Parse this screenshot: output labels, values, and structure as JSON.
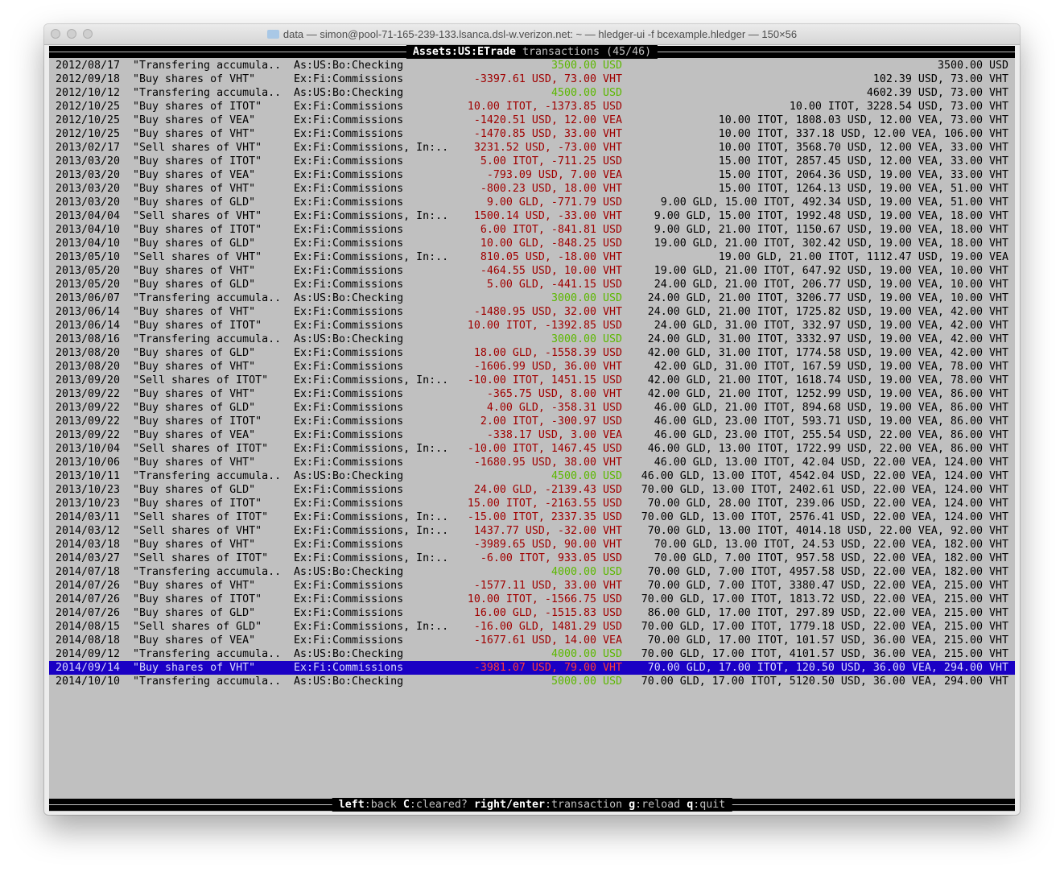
{
  "window": {
    "title": "data — simon@pool-71-165-239-133.lsanca.dsl-w.verizon.net: ~ — hledger-ui -f bcexample.hledger — 150×56",
    "folder_icon": "folder-icon"
  },
  "header": {
    "account": "Assets:US:ETrade",
    "label": " transactions (45/46)"
  },
  "colors": {
    "background": "#c0c0c0",
    "negative": "#a00000",
    "positive": "#5cb800",
    "selection": "#1a00c4"
  },
  "selected_index": 44,
  "rows": [
    {
      "date": "2012/08/17",
      "desc": "\"Transfering accumula..",
      "account": "As:US:Bo:Checking",
      "change": "3500.00 USD",
      "color": "green",
      "balance": "3500.00 USD"
    },
    {
      "date": "2012/09/18",
      "desc": "\"Buy shares of VHT\"",
      "account": "Ex:Fi:Commissions",
      "change": "-3397.61 USD, 73.00 VHT",
      "color": "red",
      "balance": "102.39 USD, 73.00 VHT"
    },
    {
      "date": "2012/10/12",
      "desc": "\"Transfering accumula..",
      "account": "As:US:Bo:Checking",
      "change": "4500.00 USD",
      "color": "green",
      "balance": "4602.39 USD, 73.00 VHT"
    },
    {
      "date": "2012/10/25",
      "desc": "\"Buy shares of ITOT\"",
      "account": "Ex:Fi:Commissions",
      "change": "10.00 ITOT, -1373.85 USD",
      "color": "red",
      "balance": "10.00 ITOT, 3228.54 USD, 73.00 VHT"
    },
    {
      "date": "2012/10/25",
      "desc": "\"Buy shares of VEA\"",
      "account": "Ex:Fi:Commissions",
      "change": "-1420.51 USD, 12.00 VEA",
      "color": "red",
      "balance": "10.00 ITOT, 1808.03 USD, 12.00 VEA, 73.00 VHT"
    },
    {
      "date": "2012/10/25",
      "desc": "\"Buy shares of VHT\"",
      "account": "Ex:Fi:Commissions",
      "change": "-1470.85 USD, 33.00 VHT",
      "color": "red",
      "balance": "10.00 ITOT, 337.18 USD, 12.00 VEA, 106.00 VHT"
    },
    {
      "date": "2013/02/17",
      "desc": "\"Sell shares of VHT\"",
      "account": "Ex:Fi:Commissions, In:..",
      "change": "3231.52 USD, -73.00 VHT",
      "color": "red",
      "balance": "10.00 ITOT, 3568.70 USD, 12.00 VEA, 33.00 VHT"
    },
    {
      "date": "2013/03/20",
      "desc": "\"Buy shares of ITOT\"",
      "account": "Ex:Fi:Commissions",
      "change": "5.00 ITOT, -711.25 USD",
      "color": "red",
      "balance": "15.00 ITOT, 2857.45 USD, 12.00 VEA, 33.00 VHT"
    },
    {
      "date": "2013/03/20",
      "desc": "\"Buy shares of VEA\"",
      "account": "Ex:Fi:Commissions",
      "change": "-793.09 USD, 7.00 VEA",
      "color": "red",
      "balance": "15.00 ITOT, 2064.36 USD, 19.00 VEA, 33.00 VHT"
    },
    {
      "date": "2013/03/20",
      "desc": "\"Buy shares of VHT\"",
      "account": "Ex:Fi:Commissions",
      "change": "-800.23 USD, 18.00 VHT",
      "color": "red",
      "balance": "15.00 ITOT, 1264.13 USD, 19.00 VEA, 51.00 VHT"
    },
    {
      "date": "2013/03/20",
      "desc": "\"Buy shares of GLD\"",
      "account": "Ex:Fi:Commissions",
      "change": "9.00 GLD, -771.79 USD",
      "color": "red",
      "balance": "9.00 GLD, 15.00 ITOT, 492.34 USD, 19.00 VEA, 51.00 VHT"
    },
    {
      "date": "2013/04/04",
      "desc": "\"Sell shares of VHT\"",
      "account": "Ex:Fi:Commissions, In:..",
      "change": "1500.14 USD, -33.00 VHT",
      "color": "red",
      "balance": "9.00 GLD, 15.00 ITOT, 1992.48 USD, 19.00 VEA, 18.00 VHT"
    },
    {
      "date": "2013/04/10",
      "desc": "\"Buy shares of ITOT\"",
      "account": "Ex:Fi:Commissions",
      "change": "6.00 ITOT, -841.81 USD",
      "color": "red",
      "balance": "9.00 GLD, 21.00 ITOT, 1150.67 USD, 19.00 VEA, 18.00 VHT"
    },
    {
      "date": "2013/04/10",
      "desc": "\"Buy shares of GLD\"",
      "account": "Ex:Fi:Commissions",
      "change": "10.00 GLD, -848.25 USD",
      "color": "red",
      "balance": "19.00 GLD, 21.00 ITOT, 302.42 USD, 19.00 VEA, 18.00 VHT"
    },
    {
      "date": "2013/05/10",
      "desc": "\"Sell shares of VHT\"",
      "account": "Ex:Fi:Commissions, In:..",
      "change": "810.05 USD, -18.00 VHT",
      "color": "red",
      "balance": "19.00 GLD, 21.00 ITOT, 1112.47 USD, 19.00 VEA"
    },
    {
      "date": "2013/05/20",
      "desc": "\"Buy shares of VHT\"",
      "account": "Ex:Fi:Commissions",
      "change": "-464.55 USD, 10.00 VHT",
      "color": "red",
      "balance": "19.00 GLD, 21.00 ITOT, 647.92 USD, 19.00 VEA, 10.00 VHT"
    },
    {
      "date": "2013/05/20",
      "desc": "\"Buy shares of GLD\"",
      "account": "Ex:Fi:Commissions",
      "change": "5.00 GLD, -441.15 USD",
      "color": "red",
      "balance": "24.00 GLD, 21.00 ITOT, 206.77 USD, 19.00 VEA, 10.00 VHT"
    },
    {
      "date": "2013/06/07",
      "desc": "\"Transfering accumula..",
      "account": "As:US:Bo:Checking",
      "change": "3000.00 USD",
      "color": "green",
      "balance": "24.00 GLD, 21.00 ITOT, 3206.77 USD, 19.00 VEA, 10.00 VHT"
    },
    {
      "date": "2013/06/14",
      "desc": "\"Buy shares of VHT\"",
      "account": "Ex:Fi:Commissions",
      "change": "-1480.95 USD, 32.00 VHT",
      "color": "red",
      "balance": "24.00 GLD, 21.00 ITOT, 1725.82 USD, 19.00 VEA, 42.00 VHT"
    },
    {
      "date": "2013/06/14",
      "desc": "\"Buy shares of ITOT\"",
      "account": "Ex:Fi:Commissions",
      "change": "10.00 ITOT, -1392.85 USD",
      "color": "red",
      "balance": "24.00 GLD, 31.00 ITOT, 332.97 USD, 19.00 VEA, 42.00 VHT"
    },
    {
      "date": "2013/08/16",
      "desc": "\"Transfering accumula..",
      "account": "As:US:Bo:Checking",
      "change": "3000.00 USD",
      "color": "green",
      "balance": "24.00 GLD, 31.00 ITOT, 3332.97 USD, 19.00 VEA, 42.00 VHT"
    },
    {
      "date": "2013/08/20",
      "desc": "\"Buy shares of GLD\"",
      "account": "Ex:Fi:Commissions",
      "change": "18.00 GLD, -1558.39 USD",
      "color": "red",
      "balance": "42.00 GLD, 31.00 ITOT, 1774.58 USD, 19.00 VEA, 42.00 VHT"
    },
    {
      "date": "2013/08/20",
      "desc": "\"Buy shares of VHT\"",
      "account": "Ex:Fi:Commissions",
      "change": "-1606.99 USD, 36.00 VHT",
      "color": "red",
      "balance": "42.00 GLD, 31.00 ITOT, 167.59 USD, 19.00 VEA, 78.00 VHT"
    },
    {
      "date": "2013/09/20",
      "desc": "\"Sell shares of ITOT\"",
      "account": "Ex:Fi:Commissions, In:..",
      "change": "-10.00 ITOT, 1451.15 USD",
      "color": "red",
      "balance": "42.00 GLD, 21.00 ITOT, 1618.74 USD, 19.00 VEA, 78.00 VHT"
    },
    {
      "date": "2013/09/22",
      "desc": "\"Buy shares of VHT\"",
      "account": "Ex:Fi:Commissions",
      "change": "-365.75 USD, 8.00 VHT",
      "color": "red",
      "balance": "42.00 GLD, 21.00 ITOT, 1252.99 USD, 19.00 VEA, 86.00 VHT"
    },
    {
      "date": "2013/09/22",
      "desc": "\"Buy shares of GLD\"",
      "account": "Ex:Fi:Commissions",
      "change": "4.00 GLD, -358.31 USD",
      "color": "red",
      "balance": "46.00 GLD, 21.00 ITOT, 894.68 USD, 19.00 VEA, 86.00 VHT"
    },
    {
      "date": "2013/09/22",
      "desc": "\"Buy shares of ITOT\"",
      "account": "Ex:Fi:Commissions",
      "change": "2.00 ITOT, -300.97 USD",
      "color": "red",
      "balance": "46.00 GLD, 23.00 ITOT, 593.71 USD, 19.00 VEA, 86.00 VHT"
    },
    {
      "date": "2013/09/22",
      "desc": "\"Buy shares of VEA\"",
      "account": "Ex:Fi:Commissions",
      "change": "-338.17 USD, 3.00 VEA",
      "color": "red",
      "balance": "46.00 GLD, 23.00 ITOT, 255.54 USD, 22.00 VEA, 86.00 VHT"
    },
    {
      "date": "2013/10/04",
      "desc": "\"Sell shares of ITOT\"",
      "account": "Ex:Fi:Commissions, In:..",
      "change": "-10.00 ITOT, 1467.45 USD",
      "color": "red",
      "balance": "46.00 GLD, 13.00 ITOT, 1722.99 USD, 22.00 VEA, 86.00 VHT"
    },
    {
      "date": "2013/10/06",
      "desc": "\"Buy shares of VHT\"",
      "account": "Ex:Fi:Commissions",
      "change": "-1680.95 USD, 38.00 VHT",
      "color": "red",
      "balance": "46.00 GLD, 13.00 ITOT, 42.04 USD, 22.00 VEA, 124.00 VHT"
    },
    {
      "date": "2013/10/11",
      "desc": "\"Transfering accumula..",
      "account": "As:US:Bo:Checking",
      "change": "4500.00 USD",
      "color": "green",
      "balance": "46.00 GLD, 13.00 ITOT, 4542.04 USD, 22.00 VEA, 124.00 VHT"
    },
    {
      "date": "2013/10/23",
      "desc": "\"Buy shares of GLD\"",
      "account": "Ex:Fi:Commissions",
      "change": "24.00 GLD, -2139.43 USD",
      "color": "red",
      "balance": "70.00 GLD, 13.00 ITOT, 2402.61 USD, 22.00 VEA, 124.00 VHT"
    },
    {
      "date": "2013/10/23",
      "desc": "\"Buy shares of ITOT\"",
      "account": "Ex:Fi:Commissions",
      "change": "15.00 ITOT, -2163.55 USD",
      "color": "red",
      "balance": "70.00 GLD, 28.00 ITOT, 239.06 USD, 22.00 VEA, 124.00 VHT"
    },
    {
      "date": "2014/03/11",
      "desc": "\"Sell shares of ITOT\"",
      "account": "Ex:Fi:Commissions, In:..",
      "change": "-15.00 ITOT, 2337.35 USD",
      "color": "red",
      "balance": "70.00 GLD, 13.00 ITOT, 2576.41 USD, 22.00 VEA, 124.00 VHT"
    },
    {
      "date": "2014/03/12",
      "desc": "\"Sell shares of VHT\"",
      "account": "Ex:Fi:Commissions, In:..",
      "change": "1437.77 USD, -32.00 VHT",
      "color": "red",
      "balance": "70.00 GLD, 13.00 ITOT, 4014.18 USD, 22.00 VEA, 92.00 VHT"
    },
    {
      "date": "2014/03/18",
      "desc": "\"Buy shares of VHT\"",
      "account": "Ex:Fi:Commissions",
      "change": "-3989.65 USD, 90.00 VHT",
      "color": "red",
      "balance": "70.00 GLD, 13.00 ITOT, 24.53 USD, 22.00 VEA, 182.00 VHT"
    },
    {
      "date": "2014/03/27",
      "desc": "\"Sell shares of ITOT\"",
      "account": "Ex:Fi:Commissions, In:..",
      "change": "-6.00 ITOT, 933.05 USD",
      "color": "red",
      "balance": "70.00 GLD, 7.00 ITOT, 957.58 USD, 22.00 VEA, 182.00 VHT"
    },
    {
      "date": "2014/07/18",
      "desc": "\"Transfering accumula..",
      "account": "As:US:Bo:Checking",
      "change": "4000.00 USD",
      "color": "green",
      "balance": "70.00 GLD, 7.00 ITOT, 4957.58 USD, 22.00 VEA, 182.00 VHT"
    },
    {
      "date": "2014/07/26",
      "desc": "\"Buy shares of VHT\"",
      "account": "Ex:Fi:Commissions",
      "change": "-1577.11 USD, 33.00 VHT",
      "color": "red",
      "balance": "70.00 GLD, 7.00 ITOT, 3380.47 USD, 22.00 VEA, 215.00 VHT"
    },
    {
      "date": "2014/07/26",
      "desc": "\"Buy shares of ITOT\"",
      "account": "Ex:Fi:Commissions",
      "change": "10.00 ITOT, -1566.75 USD",
      "color": "red",
      "balance": "70.00 GLD, 17.00 ITOT, 1813.72 USD, 22.00 VEA, 215.00 VHT"
    },
    {
      "date": "2014/07/26",
      "desc": "\"Buy shares of GLD\"",
      "account": "Ex:Fi:Commissions",
      "change": "16.00 GLD, -1515.83 USD",
      "color": "red",
      "balance": "86.00 GLD, 17.00 ITOT, 297.89 USD, 22.00 VEA, 215.00 VHT"
    },
    {
      "date": "2014/08/15",
      "desc": "\"Sell shares of GLD\"",
      "account": "Ex:Fi:Commissions, In:..",
      "change": "-16.00 GLD, 1481.29 USD",
      "color": "red",
      "balance": "70.00 GLD, 17.00 ITOT, 1779.18 USD, 22.00 VEA, 215.00 VHT"
    },
    {
      "date": "2014/08/18",
      "desc": "\"Buy shares of VEA\"",
      "account": "Ex:Fi:Commissions",
      "change": "-1677.61 USD, 14.00 VEA",
      "color": "red",
      "balance": "70.00 GLD, 17.00 ITOT, 101.57 USD, 36.00 VEA, 215.00 VHT"
    },
    {
      "date": "2014/09/12",
      "desc": "\"Transfering accumula..",
      "account": "As:US:Bo:Checking",
      "change": "4000.00 USD",
      "color": "green",
      "balance": "70.00 GLD, 17.00 ITOT, 4101.57 USD, 36.00 VEA, 215.00 VHT"
    },
    {
      "date": "2014/09/14",
      "desc": "\"Buy shares of VHT\"",
      "account": "Ex:Fi:Commissions",
      "change": "-3981.07 USD, 79.00 VHT",
      "color": "red",
      "balance": "70.00 GLD, 17.00 ITOT, 120.50 USD, 36.00 VEA, 294.00 VHT"
    },
    {
      "date": "2014/10/10",
      "desc": "\"Transfering accumula..",
      "account": "As:US:Bo:Checking",
      "change": "5000.00 USD",
      "color": "green",
      "balance": "70.00 GLD, 17.00 ITOT, 5120.50 USD, 36.00 VEA, 294.00 VHT"
    }
  ],
  "footer": {
    "keys": [
      {
        "key": "left",
        "action": "back"
      },
      {
        "key": "C",
        "action": "cleared?"
      },
      {
        "key": "right/enter",
        "action": "transaction"
      },
      {
        "key": "g",
        "action": "reload"
      },
      {
        "key": "q",
        "action": "quit"
      }
    ]
  }
}
